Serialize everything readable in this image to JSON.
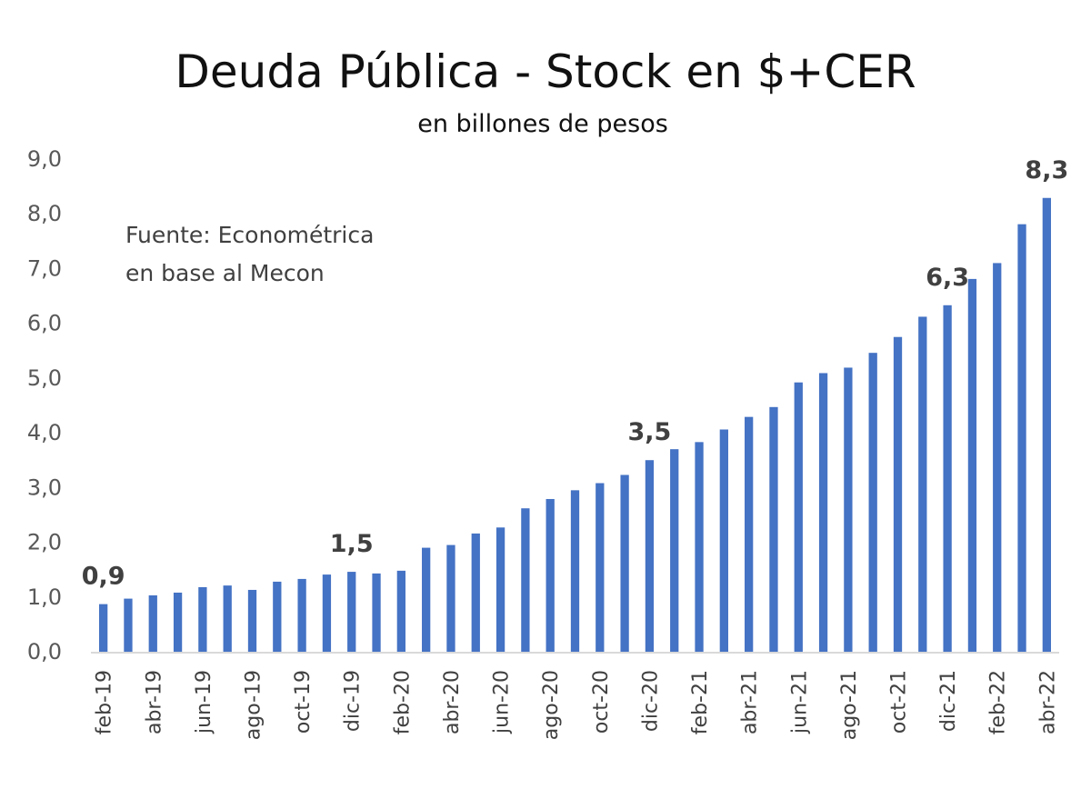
{
  "chart_data": {
    "type": "bar",
    "title": "Deuda Pública - Stock en $+CER",
    "subtitle": "en billones de pesos",
    "xlabel": "",
    "ylabel": "",
    "ylim": [
      0,
      9
    ],
    "yticks": [
      "0,0",
      "1,0",
      "2,0",
      "3,0",
      "4,0",
      "5,0",
      "6,0",
      "7,0",
      "8,0",
      "9,0"
    ],
    "grid": false,
    "bar_color": "#4472C4",
    "annotation": [
      "Fuente: Econométrica",
      "en base al Mecon"
    ],
    "categories": [
      "feb-19",
      "mar-19",
      "abr-19",
      "may-19",
      "jun-19",
      "jul-19",
      "ago-19",
      "sep-19",
      "oct-19",
      "nov-19",
      "dic-19",
      "ene-20",
      "feb-20",
      "mar-20",
      "abr-20",
      "may-20",
      "jun-20",
      "jul-20",
      "ago-20",
      "sep-20",
      "oct-20",
      "nov-20",
      "dic-20",
      "ene-21",
      "feb-21",
      "mar-21",
      "abr-21",
      "may-21",
      "jun-21",
      "jul-21",
      "ago-21",
      "sep-21",
      "oct-21",
      "nov-21",
      "dic-21",
      "ene-22",
      "feb-22",
      "mar-22",
      "abr-22"
    ],
    "xtick_labels_shown": [
      "feb-19",
      "abr-19",
      "jun-19",
      "ago-19",
      "oct-19",
      "dic-19",
      "feb-20",
      "abr-20",
      "jun-20",
      "ago-20",
      "oct-20",
      "dic-20",
      "feb-21",
      "abr-21",
      "jun-21",
      "ago-21",
      "oct-21",
      "dic-21",
      "feb-22",
      "abr-22"
    ],
    "values": [
      0.87,
      0.97,
      1.03,
      1.08,
      1.18,
      1.21,
      1.13,
      1.28,
      1.33,
      1.41,
      1.46,
      1.43,
      1.48,
      1.9,
      1.95,
      2.16,
      2.27,
      2.62,
      2.79,
      2.95,
      3.08,
      3.23,
      3.5,
      3.7,
      3.83,
      4.06,
      4.29,
      4.47,
      4.92,
      5.09,
      5.19,
      5.46,
      5.75,
      6.12,
      6.33,
      6.81,
      7.1,
      7.81,
      8.29
    ],
    "data_labels": [
      {
        "category": "feb-19",
        "text": "0,9"
      },
      {
        "category": "dic-19",
        "text": "1,5"
      },
      {
        "category": "dic-20",
        "text": "3,5"
      },
      {
        "category": "dic-21",
        "text": "6,3"
      },
      {
        "category": "abr-22",
        "text": "8,3"
      }
    ]
  }
}
